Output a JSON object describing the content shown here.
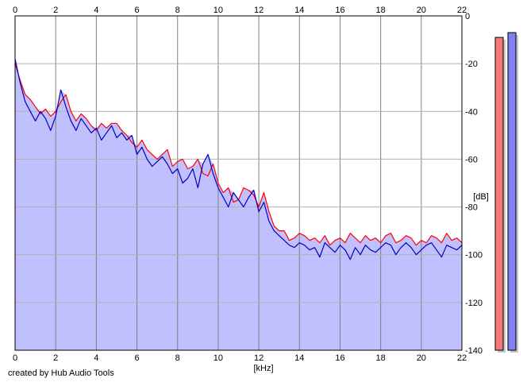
{
  "chart_data": {
    "type": "area",
    "xlabel": "[kHz]",
    "ylabel": "[dB]",
    "xlim": [
      0,
      22
    ],
    "ylim": [
      -140,
      0
    ],
    "x_ticks": [
      "0",
      "2",
      "4",
      "6",
      "8",
      "10",
      "12",
      "14",
      "16",
      "18",
      "20",
      "22"
    ],
    "y_ticks": [
      "0",
      "-20",
      "-40",
      "-60",
      "-80",
      "-100",
      "-120",
      "-140"
    ],
    "grid": true,
    "series": [
      {
        "channel": "red",
        "color": "#ff0000",
        "x": [
          0,
          0.25,
          0.5,
          0.75,
          1,
          1.25,
          1.5,
          1.75,
          2,
          2.25,
          2.5,
          2.75,
          3,
          3.25,
          3.5,
          3.75,
          4,
          4.25,
          4.5,
          4.75,
          5,
          5.25,
          5.5,
          5.75,
          6,
          6.25,
          6.5,
          6.75,
          7,
          7.25,
          7.5,
          7.75,
          8,
          8.25,
          8.5,
          8.75,
          9,
          9.25,
          9.5,
          9.75,
          10,
          10.25,
          10.5,
          10.75,
          11,
          11.25,
          11.5,
          11.75,
          12,
          12.25,
          12.5,
          12.75,
          13,
          13.25,
          13.5,
          13.75,
          14,
          14.25,
          14.5,
          14.75,
          15,
          15.25,
          15.5,
          15.75,
          16,
          16.25,
          16.5,
          16.75,
          17,
          17.25,
          17.5,
          17.75,
          18,
          18.25,
          18.5,
          18.75,
          19,
          19.25,
          19.5,
          19.75,
          20,
          20.25,
          20.5,
          20.75,
          21,
          21.25,
          21.5,
          21.75,
          22
        ],
        "values": [
          -20,
          -27,
          -33,
          -35,
          -38,
          -41,
          -39,
          -42,
          -40,
          -36,
          -33,
          -40,
          -44,
          -41,
          -43,
          -46,
          -48,
          -45,
          -47,
          -45,
          -45,
          -48,
          -50,
          -53,
          -55,
          -52,
          -56,
          -58,
          -60,
          -58,
          -56,
          -63,
          -61,
          -60,
          -64,
          -63,
          -60,
          -66,
          -67,
          -62,
          -70,
          -74,
          -72,
          -78,
          -77,
          -72,
          -73,
          -75,
          -80,
          -74,
          -82,
          -88,
          -90,
          -90,
          -94,
          -93,
          -91,
          -92,
          -94,
          -93,
          -95,
          -92,
          -96,
          -94,
          -93,
          -95,
          -91,
          -93,
          -95,
          -92,
          -94,
          -93,
          -95,
          -92,
          -91,
          -95,
          -94,
          -92,
          -93,
          -96,
          -94,
          -95,
          -92,
          -93,
          -95,
          -91,
          -94,
          -93,
          -95
        ]
      },
      {
        "channel": "blue",
        "color": "#0000c0",
        "x": [
          0,
          0.25,
          0.5,
          0.75,
          1,
          1.25,
          1.5,
          1.75,
          2,
          2.25,
          2.5,
          2.75,
          3,
          3.25,
          3.5,
          3.75,
          4,
          4.25,
          4.5,
          4.75,
          5,
          5.25,
          5.5,
          5.75,
          6,
          6.25,
          6.5,
          6.75,
          7,
          7.25,
          7.5,
          7.75,
          8,
          8.25,
          8.5,
          8.75,
          9,
          9.25,
          9.5,
          9.75,
          10,
          10.25,
          10.5,
          10.75,
          11,
          11.25,
          11.5,
          11.75,
          12,
          12.25,
          12.5,
          12.75,
          13,
          13.25,
          13.5,
          13.75,
          14,
          14.25,
          14.5,
          14.75,
          15,
          15.25,
          15.5,
          15.75,
          16,
          16.25,
          16.5,
          16.75,
          17,
          17.25,
          17.5,
          17.75,
          18,
          18.25,
          18.5,
          18.75,
          19,
          19.25,
          19.5,
          19.75,
          20,
          20.25,
          20.5,
          20.75,
          21,
          21.25,
          21.5,
          21.75,
          22
        ],
        "values": [
          -18,
          -28,
          -36,
          -40,
          -44,
          -40,
          -43,
          -48,
          -42,
          -31,
          -38,
          -44,
          -48,
          -43,
          -46,
          -49,
          -47,
          -52,
          -49,
          -46,
          -51,
          -49,
          -52,
          -50,
          -58,
          -55,
          -60,
          -63,
          -61,
          -59,
          -62,
          -66,
          -64,
          -70,
          -68,
          -64,
          -72,
          -62,
          -58,
          -66,
          -72,
          -76,
          -80,
          -74,
          -77,
          -80,
          -76,
          -73,
          -82,
          -78,
          -86,
          -90,
          -92,
          -94,
          -96,
          -97,
          -95,
          -96,
          -98,
          -97,
          -101,
          -95,
          -97,
          -99,
          -96,
          -98,
          -102,
          -97,
          -100,
          -96,
          -98,
          -99,
          -97,
          -95,
          -96,
          -100,
          -97,
          -95,
          -97,
          -100,
          -98,
          -96,
          -95,
          -98,
          -101,
          -96,
          -97,
          -98,
          -96
        ]
      }
    ],
    "meters": [
      {
        "channel": "red",
        "color": "#f07878",
        "value": -9
      },
      {
        "channel": "blue",
        "color": "#8080f0",
        "value": -7
      }
    ],
    "fill_color": "#c0c0ff"
  },
  "credit": "created by Hub Audio Tools"
}
